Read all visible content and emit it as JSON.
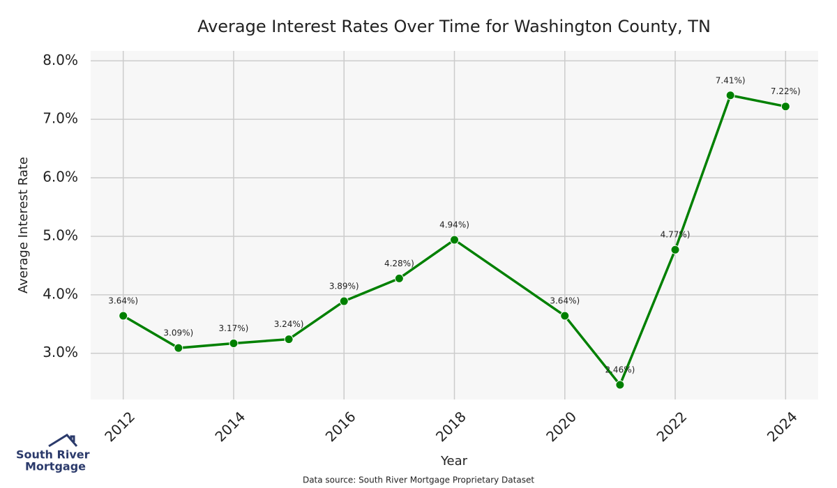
{
  "chart_data": {
    "type": "line",
    "title": "Average Interest Rates Over Time for Washington County, TN",
    "x_label": "Year",
    "y_label": "Average Interest Rate",
    "source": "Data source: South River Mortgage Proprietary Dataset",
    "logo": [
      "South River",
      "Mortgage"
    ],
    "x": [
      2012,
      2013,
      2014,
      2015,
      2016,
      2017,
      2018,
      2020,
      2021,
      2022,
      2023,
      2024
    ],
    "values": [
      3.64,
      3.09,
      3.17,
      3.24,
      3.89,
      4.28,
      4.94,
      3.64,
      2.46,
      4.77,
      7.41,
      7.22
    ],
    "value_labels": [
      "3.64%)",
      "3.09%)",
      "3.17%)",
      "3.24%)",
      "3.89%)",
      "4.28%)",
      "4.94%)",
      "3.64%)",
      "2.46%)",
      "4.77%)",
      "7.41%)",
      "7.22%)"
    ],
    "color": "#008000",
    "xlim": [
      2011.41,
      2024.59
    ],
    "xticks": [
      2012,
      2014,
      2016,
      2018,
      2020,
      2022,
      2024
    ],
    "ylim": [
      2.21,
      8.17
    ],
    "yticks": [
      {
        "value": 3,
        "label": "3.0%"
      },
      {
        "value": 4,
        "label": "4.0%"
      },
      {
        "value": 5,
        "label": "5.0%"
      },
      {
        "value": 6,
        "label": "6.0%"
      },
      {
        "value": 7,
        "label": "7.0%"
      },
      {
        "value": 8,
        "label": "8.0%"
      }
    ],
    "grid": true
  }
}
